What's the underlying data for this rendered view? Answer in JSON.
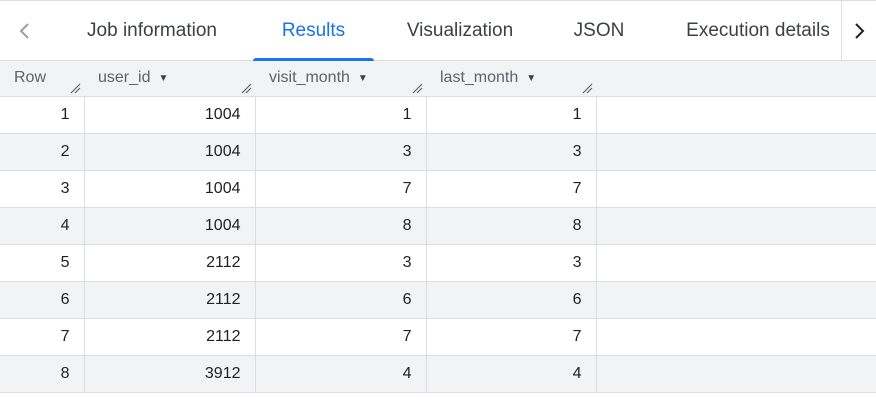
{
  "tabs": [
    {
      "label": "Job information",
      "active": false
    },
    {
      "label": "Results",
      "active": true
    },
    {
      "label": "Visualization",
      "active": false
    },
    {
      "label": "JSON",
      "active": false
    },
    {
      "label": "Execution details",
      "active": false
    }
  ],
  "icons": {
    "scroll_left": "chevron-left-icon",
    "scroll_right": "chevron-right-icon",
    "sort": "arrow-drop-down-icon",
    "resize": "column-resize-icon"
  },
  "colors": {
    "accent": "#1a73e8",
    "header_bg": "#f1f3f4",
    "stripe_bg": "#f1f3f4",
    "border": "#dadce0"
  },
  "table": {
    "columns": [
      "Row",
      "user_id",
      "visit_month",
      "last_month"
    ],
    "rows": [
      [
        "1",
        "1004",
        "1",
        "1"
      ],
      [
        "2",
        "1004",
        "3",
        "3"
      ],
      [
        "3",
        "1004",
        "7",
        "7"
      ],
      [
        "4",
        "1004",
        "8",
        "8"
      ],
      [
        "5",
        "2112",
        "3",
        "3"
      ],
      [
        "6",
        "2112",
        "6",
        "6"
      ],
      [
        "7",
        "2112",
        "7",
        "7"
      ],
      [
        "8",
        "3912",
        "4",
        "4"
      ]
    ]
  }
}
